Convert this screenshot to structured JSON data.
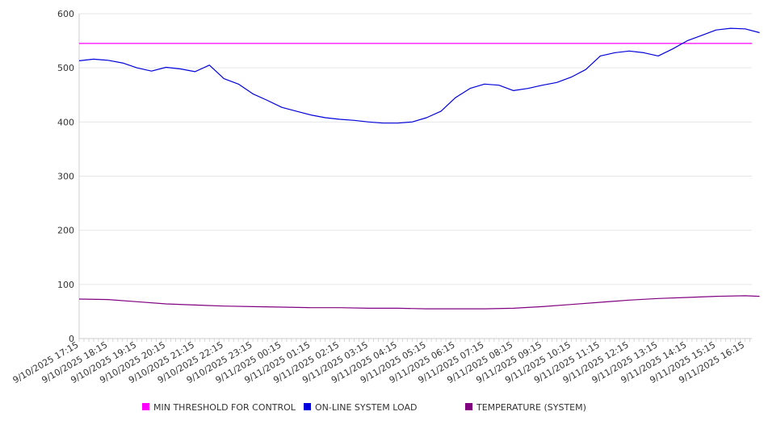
{
  "chart_data": {
    "type": "line",
    "title": "",
    "xlabel": "",
    "ylabel": "",
    "ylim": [
      0,
      600
    ],
    "yticks": [
      0,
      100,
      200,
      300,
      400,
      500,
      600
    ],
    "grid": true,
    "legend_position": "bottom",
    "x_tick_labels": [
      "9/10/2025 17:15",
      "9/10/2025 18:15",
      "9/10/2025 19:15",
      "9/10/2025 20:15",
      "9/10/2025 21:15",
      "9/10/2025 22:15",
      "9/10/2025 23:15",
      "9/11/2025 00:15",
      "9/11/2025 01:15",
      "9/11/2025 02:15",
      "9/11/2025 03:15",
      "9/11/2025 04:15",
      "9/11/2025 05:15",
      "9/11/2025 06:15",
      "9/11/2025 07:15",
      "9/11/2025 08:15",
      "9/11/2025 09:15",
      "9/11/2025 10:15",
      "9/11/2025 11:15",
      "9/11/2025 12:15",
      "9/11/2025 13:15",
      "9/11/2025 14:15",
      "9/11/2025 15:15",
      "9/11/2025 16:15"
    ],
    "series": [
      {
        "name": "MIN THRESHOLD FOR CONTROL",
        "color": "#ff00ff",
        "x": [
          "9/10/2025 17:15",
          "9/11/2025 16:15"
        ],
        "values": [
          545,
          545
        ]
      },
      {
        "name": "ON-LINE SYSTEM LOAD",
        "color": "#0000dd",
        "x": [
          "9/10/2025 17:15",
          "9/10/2025 17:45",
          "9/10/2025 18:15",
          "9/10/2025 18:45",
          "9/10/2025 19:15",
          "9/10/2025 19:45",
          "9/10/2025 20:15",
          "9/10/2025 20:45",
          "9/10/2025 21:15",
          "9/10/2025 21:45",
          "9/10/2025 22:15",
          "9/10/2025 22:45",
          "9/10/2025 23:15",
          "9/10/2025 23:45",
          "9/11/2025 00:15",
          "9/11/2025 00:45",
          "9/11/2025 01:15",
          "9/11/2025 01:45",
          "9/11/2025 02:15",
          "9/11/2025 02:45",
          "9/11/2025 03:15",
          "9/11/2025 03:45",
          "9/11/2025 04:15",
          "9/11/2025 04:45",
          "9/11/2025 05:15",
          "9/11/2025 05:45",
          "9/11/2025 06:15",
          "9/11/2025 06:45",
          "9/11/2025 07:15",
          "9/11/2025 07:45",
          "9/11/2025 08:15",
          "9/11/2025 08:45",
          "9/11/2025 09:15",
          "9/11/2025 09:45",
          "9/11/2025 10:15",
          "9/11/2025 10:45",
          "9/11/2025 11:15",
          "9/11/2025 11:45",
          "9/11/2025 12:15",
          "9/11/2025 12:45",
          "9/11/2025 13:15",
          "9/11/2025 13:45",
          "9/11/2025 14:15",
          "9/11/2025 14:45",
          "9/11/2025 15:15",
          "9/11/2025 15:45",
          "9/11/2025 16:15",
          "9/11/2025 16:45"
        ],
        "values": [
          513,
          516,
          514,
          509,
          500,
          494,
          501,
          498,
          493,
          505,
          480,
          470,
          452,
          440,
          427,
          420,
          413,
          408,
          405,
          403,
          400,
          398,
          398,
          400,
          408,
          420,
          445,
          462,
          470,
          468,
          458,
          462,
          468,
          473,
          483,
          497,
          522,
          528,
          531,
          528,
          522,
          535,
          550,
          560,
          570,
          573,
          572,
          565
        ]
      },
      {
        "name": "TEMPERATURE (SYSTEM)",
        "color": "#800080",
        "x": [
          "9/10/2025 17:15",
          "9/10/2025 18:15",
          "9/10/2025 19:15",
          "9/10/2025 20:15",
          "9/10/2025 21:15",
          "9/10/2025 22:15",
          "9/10/2025 23:15",
          "9/11/2025 00:15",
          "9/11/2025 01:15",
          "9/11/2025 02:15",
          "9/11/2025 03:15",
          "9/11/2025 04:15",
          "9/11/2025 05:15",
          "9/11/2025 06:15",
          "9/11/2025 07:15",
          "9/11/2025 08:15",
          "9/11/2025 09:15",
          "9/11/2025 10:15",
          "9/11/2025 11:15",
          "9/11/2025 12:15",
          "9/11/2025 13:15",
          "9/11/2025 14:15",
          "9/11/2025 15:15",
          "9/11/2025 16:15",
          "9/11/2025 16:45"
        ],
        "values": [
          73,
          72,
          68,
          64,
          62,
          60,
          59,
          58,
          57,
          57,
          56,
          56,
          55,
          55,
          55,
          56,
          59,
          63,
          67,
          71,
          74,
          76,
          78,
          79,
          78
        ]
      }
    ]
  }
}
